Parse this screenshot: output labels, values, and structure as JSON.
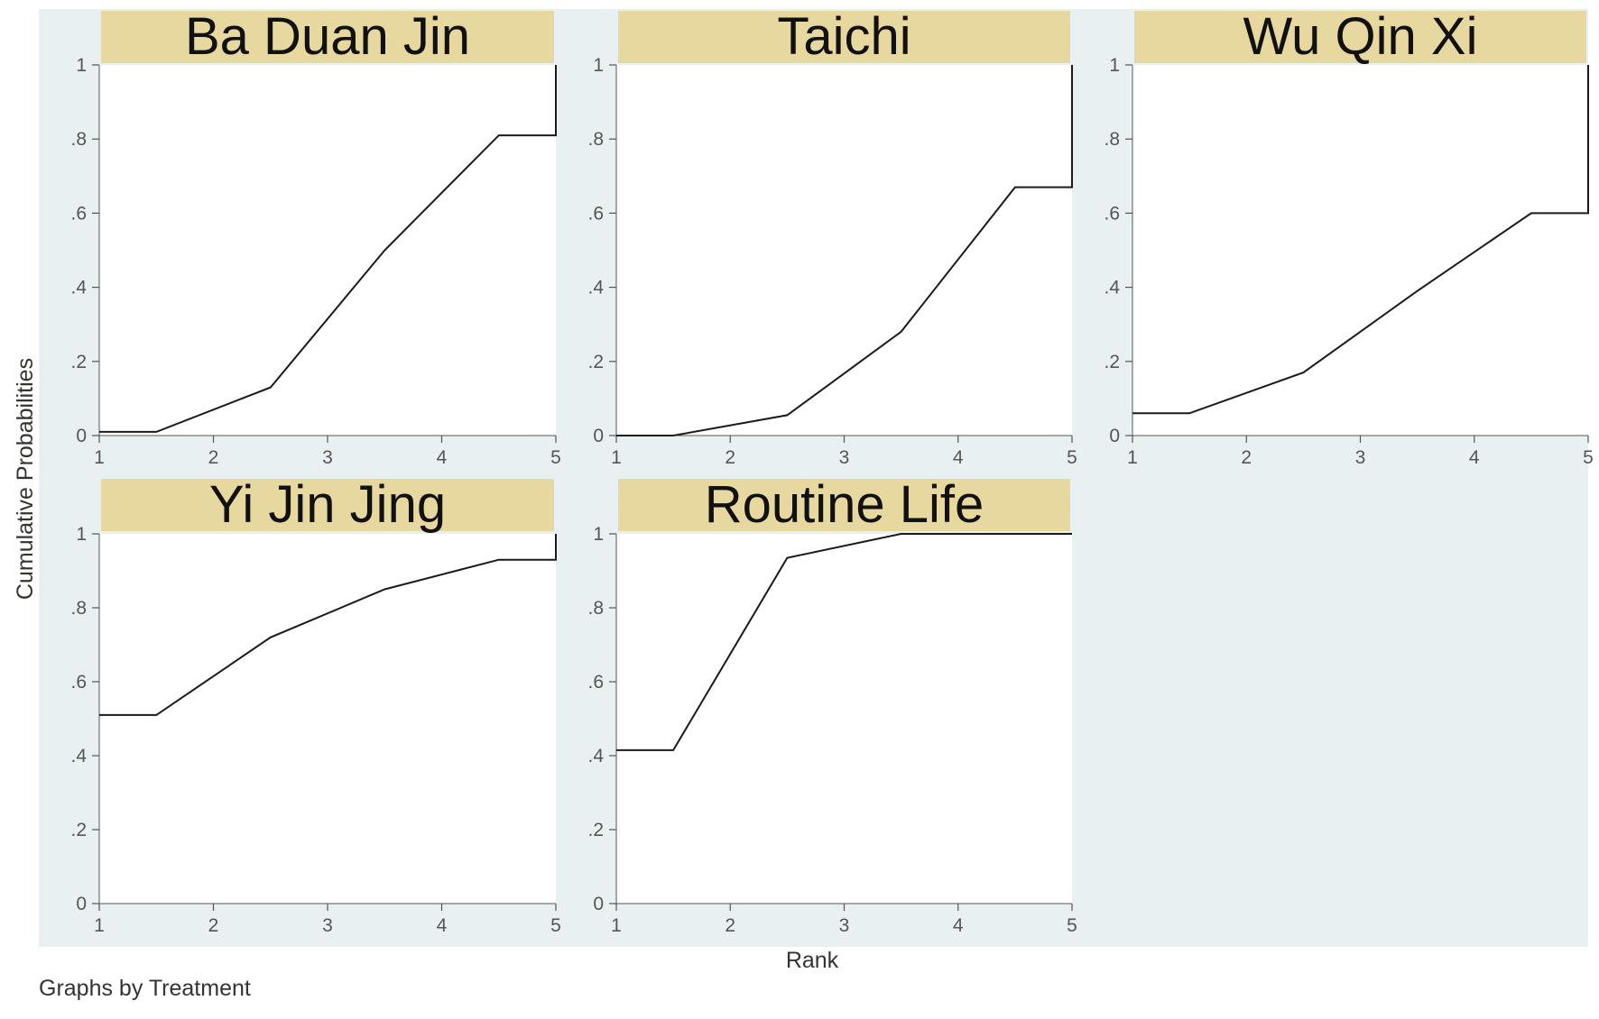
{
  "chart_data": {
    "type": "line",
    "xlabel": "Rank",
    "ylabel": "Cumulative Probabilities",
    "note": "Graphs by Treatment",
    "xlim": [
      1,
      5
    ],
    "ylim": [
      0,
      1
    ],
    "x_ticks": [
      "1",
      "2",
      "3",
      "4",
      "5"
    ],
    "y_ticks": [
      "0",
      ".2",
      ".4",
      ".6",
      ".8",
      "1"
    ],
    "panels": [
      {
        "title": "Ba Duan Jin",
        "points": [
          [
            1,
            0.01
          ],
          [
            1.5,
            0.01
          ],
          [
            2.5,
            0.13
          ],
          [
            3.5,
            0.5
          ],
          [
            4.5,
            0.81
          ],
          [
            5,
            0.81
          ],
          [
            5,
            1
          ]
        ]
      },
      {
        "title": "Taichi",
        "points": [
          [
            1,
            0.0
          ],
          [
            1.5,
            0.0
          ],
          [
            2.5,
            0.055
          ],
          [
            3.5,
            0.28
          ],
          [
            4.5,
            0.67
          ],
          [
            5,
            0.67
          ],
          [
            5,
            1
          ]
        ]
      },
      {
        "title": "Wu Qin Xi",
        "points": [
          [
            1,
            0.06
          ],
          [
            1.5,
            0.06
          ],
          [
            2.5,
            0.17
          ],
          [
            3.5,
            0.39
          ],
          [
            4.5,
            0.6
          ],
          [
            5,
            0.6
          ],
          [
            5,
            1
          ]
        ]
      },
      {
        "title": "Yi Jin Jing",
        "points": [
          [
            1,
            0.51
          ],
          [
            1.5,
            0.51
          ],
          [
            2.5,
            0.72
          ],
          [
            3.5,
            0.85
          ],
          [
            4.5,
            0.93
          ],
          [
            5,
            0.93
          ],
          [
            5,
            1
          ]
        ]
      },
      {
        "title": "Routine Life",
        "points": [
          [
            1,
            0.415
          ],
          [
            1.5,
            0.415
          ],
          [
            2.5,
            0.935
          ],
          [
            3.5,
            1.0
          ],
          [
            4.5,
            1.0
          ],
          [
            5,
            1.0
          ]
        ]
      }
    ],
    "colors": {
      "outer_background": "#e8f0f2",
      "plot_background": "#ffffff",
      "strip_background": "#e7d8a0",
      "line": "#1a1a1a",
      "tick_text": "#555555"
    }
  }
}
